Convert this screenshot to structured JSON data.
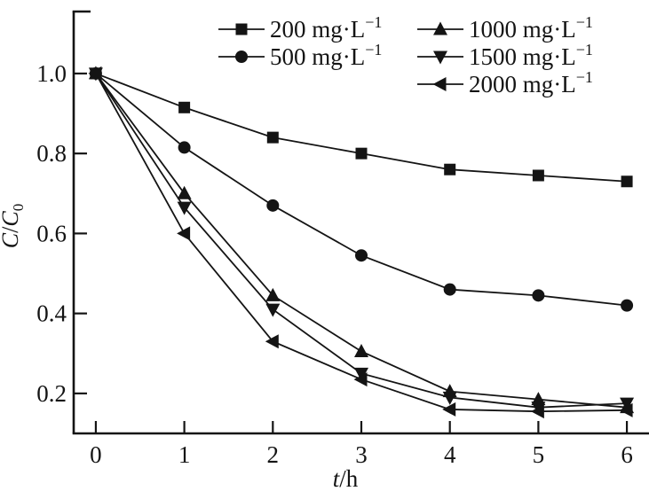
{
  "figure": {
    "background": "#ffffff",
    "ink_color": "#141414"
  },
  "chart_data": {
    "type": "line",
    "title": "",
    "xlabel": "t/h",
    "xlabel_parts": {
      "italic": "t",
      "normal": "/h"
    },
    "ylabel": "C/C0",
    "ylabel_parts": {
      "italic1": "C",
      "slash": "/",
      "italic2": "C",
      "sub": "0"
    },
    "x": [
      0,
      1,
      2,
      3,
      4,
      5,
      6
    ],
    "x_tick_labels": [
      "0",
      "1",
      "2",
      "3",
      "4",
      "5",
      "6"
    ],
    "y_ticks": [
      0.2,
      0.4,
      0.6,
      0.8,
      1.0
    ],
    "y_tick_labels": [
      "0.2",
      "0.4",
      "0.6",
      "0.8",
      "1.0"
    ],
    "xlim": [
      -0.25,
      6.25
    ],
    "ylim": [
      0.1,
      1.155
    ],
    "grid": false,
    "legend_position": "top-inside",
    "series": [
      {
        "name": "200 mg·L⁻¹",
        "label_prefix": "200 mg·L",
        "label_sup": "−1",
        "marker": "square",
        "values": [
          1.0,
          0.915,
          0.84,
          0.8,
          0.76,
          0.745,
          0.73
        ]
      },
      {
        "name": "500 mg·L⁻¹",
        "label_prefix": "500 mg·L",
        "label_sup": "−1",
        "marker": "circle",
        "values": [
          1.0,
          0.815,
          0.67,
          0.545,
          0.46,
          0.445,
          0.42
        ]
      },
      {
        "name": "1000 mg·L⁻¹",
        "label_prefix": "1000 mg·L",
        "label_sup": "−1",
        "marker": "triangle-up",
        "values": [
          1.0,
          0.7,
          0.445,
          0.305,
          0.205,
          0.185,
          0.165
        ]
      },
      {
        "name": "1500 mg·L⁻¹",
        "label_prefix": "1500 mg·L",
        "label_sup": "−1",
        "marker": "triangle-down",
        "values": [
          1.0,
          0.665,
          0.41,
          0.25,
          0.19,
          0.165,
          0.175
        ]
      },
      {
        "name": "2000 mg·L⁻¹",
        "label_prefix": "2000 mg·L",
        "label_sup": "−1",
        "marker": "triangle-left",
        "values": [
          1.0,
          0.6,
          0.33,
          0.235,
          0.16,
          0.155,
          0.158
        ]
      }
    ],
    "legend_columns": [
      [
        0,
        1
      ],
      [
        2,
        3,
        4
      ]
    ]
  }
}
